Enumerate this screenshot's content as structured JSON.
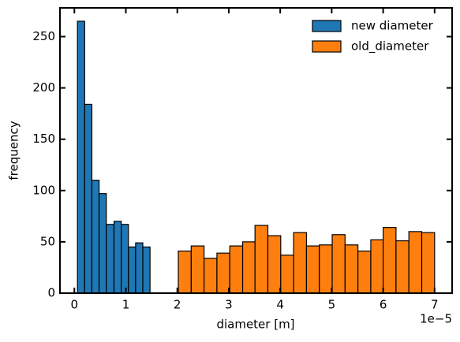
{
  "chart_data": {
    "type": "histogram",
    "x_label": "diameter [m]",
    "y_label": "frequency",
    "x_offset_label": "1e−5",
    "xlim": [
      -0.28,
      7.34
    ],
    "xticks": [
      0,
      1,
      2,
      3,
      4,
      5,
      6,
      7
    ],
    "ylim": [
      0,
      278
    ],
    "yticks": [
      0,
      50,
      100,
      150,
      200,
      250
    ],
    "legend": "upper right",
    "series": [
      {
        "name": "new diameter",
        "color": "#1f77b4",
        "bins": [
          0.06,
          0.2,
          0.34,
          0.48,
          0.62,
          0.77,
          0.91,
          1.05,
          1.19,
          1.33,
          1.47
        ],
        "values": [
          265,
          184,
          110,
          97,
          67,
          70,
          67,
          45,
          49,
          45
        ]
      },
      {
        "name": "old_diameter",
        "color": "#ff7f0e",
        "bins": [
          2.02,
          2.27,
          2.52,
          2.77,
          3.02,
          3.27,
          3.51,
          3.76,
          4.01,
          4.26,
          4.51,
          4.76,
          5.01,
          5.26,
          5.51,
          5.76,
          6.0,
          6.25,
          6.5,
          6.75,
          7.0
        ],
        "values": [
          41,
          46,
          34,
          39,
          46,
          50,
          66,
          56,
          37,
          59,
          46,
          47,
          57,
          47,
          41,
          52,
          64,
          51,
          60,
          59
        ]
      }
    ]
  }
}
